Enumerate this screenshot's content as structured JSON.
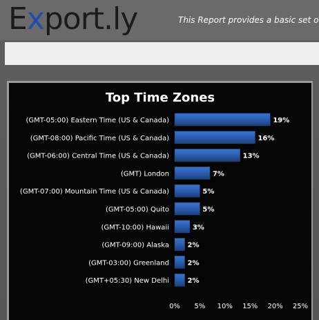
{
  "header": {
    "logo_text_1": "E",
    "logo_text_accent": "x",
    "logo_text_2": "port.ly",
    "tagline": "This Report provides a basic set of"
  },
  "colors": {
    "bar": "#2a5db0",
    "bar_edge": "#1d3f7a",
    "plot_bg": "#000000",
    "text": "#ffffff"
  },
  "chart_data": {
    "type": "bar",
    "orientation": "horizontal",
    "title": "Top Time Zones",
    "categories": [
      "(GMT-05:00) Eastern Time (US & Canada)",
      "(GMT-08:00) Pacific Time (US & Canada)",
      "(GMT-06:00) Central Time (US & Canada)",
      "(GMT) London",
      "(GMT-07:00) Mountain Time (US & Canada)",
      "(GMT-05:00) Quito",
      "(GMT-10:00) Hawaii",
      "(GMT-09:00) Alaska",
      "(GMT-03:00) Greenland",
      "(GMT+05:30) New Delhi"
    ],
    "values": [
      19,
      16,
      13,
      7,
      5,
      5,
      3,
      2,
      2,
      2
    ],
    "value_labels": [
      "19%",
      "16%",
      "13%",
      "7%",
      "5%",
      "5%",
      "3%",
      "2%",
      "2%",
      "2%"
    ],
    "xlim": [
      0,
      25
    ],
    "xticks": [
      "0%",
      "5%",
      "10%",
      "15%",
      "20%",
      "25%"
    ],
    "grid": false,
    "legend": "none"
  }
}
